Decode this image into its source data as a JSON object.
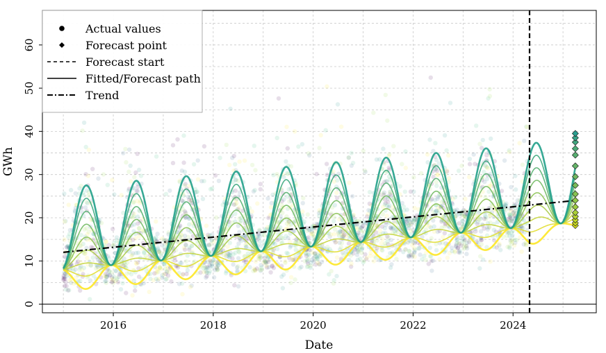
{
  "chart_data": {
    "type": "line",
    "xlabel": "Date",
    "ylabel": "GWh",
    "x_ticks": [
      "2016",
      "2018",
      "2020",
      "2022",
      "2024"
    ],
    "y_ticks": [
      0,
      10,
      20,
      30,
      40,
      50,
      60
    ],
    "xlim": [
      "2014-08-01",
      "2025-09-01"
    ],
    "ylim": [
      -2,
      68
    ],
    "grid": true,
    "legend_position": "top-left",
    "legend": [
      {
        "label": "Actual values",
        "marker": "dot"
      },
      {
        "label": "Forecast point",
        "marker": "diamond"
      },
      {
        "label": "Forecast start",
        "marker": "dashed-line"
      },
      {
        "label": "Fitted/Forecast path",
        "marker": "solid-line"
      },
      {
        "label": "Trend",
        "marker": "dashdot-line"
      }
    ],
    "forecast_start": "2024-05-01",
    "forecast_date": "2025-04-01",
    "trend": {
      "x": [
        "2015-01-01",
        "2025-04-01"
      ],
      "y": [
        12.0,
        24.0
      ]
    },
    "quantile_paths": {
      "start": "2015-01-01",
      "end": "2025-04-01",
      "peak_month": 5.5,
      "trough": [
        {
          "x": "2015-01-01",
          "y": 8.0
        },
        {
          "x": "2024-05-01",
          "y": 18.0
        },
        {
          "x": "2025-04-01",
          "y": 19.0
        }
      ],
      "peak_high": [
        {
          "x": "2015-01-01",
          "y": 27.0
        },
        {
          "x": "2024-05-01",
          "y": 37.0
        },
        {
          "x": "2025-04-01",
          "y": 39.5
        }
      ],
      "trough_low": [
        {
          "x": "2015-01-01",
          "y": 3.0
        },
        {
          "x": "2024-05-01",
          "y": 13.5
        },
        {
          "x": "2025-04-01",
          "y": 18.0
        }
      ]
    },
    "forecast_points_y": [
      18.2,
      18.8,
      19.5,
      20.3,
      21.2,
      22.5,
      24.0,
      25.5,
      27.5,
      29.5,
      32.0,
      34.5,
      36.0,
      37.5,
      38.5,
      39.5
    ],
    "colors": {
      "actual": [
        "#440154",
        "#31688e",
        "#35b779",
        "#21918c",
        "#fde725",
        "#90d743"
      ],
      "paths_low": "#fde725",
      "paths_high": "#21a08a",
      "trend": "#000000",
      "forecast_start": "#000000"
    }
  }
}
